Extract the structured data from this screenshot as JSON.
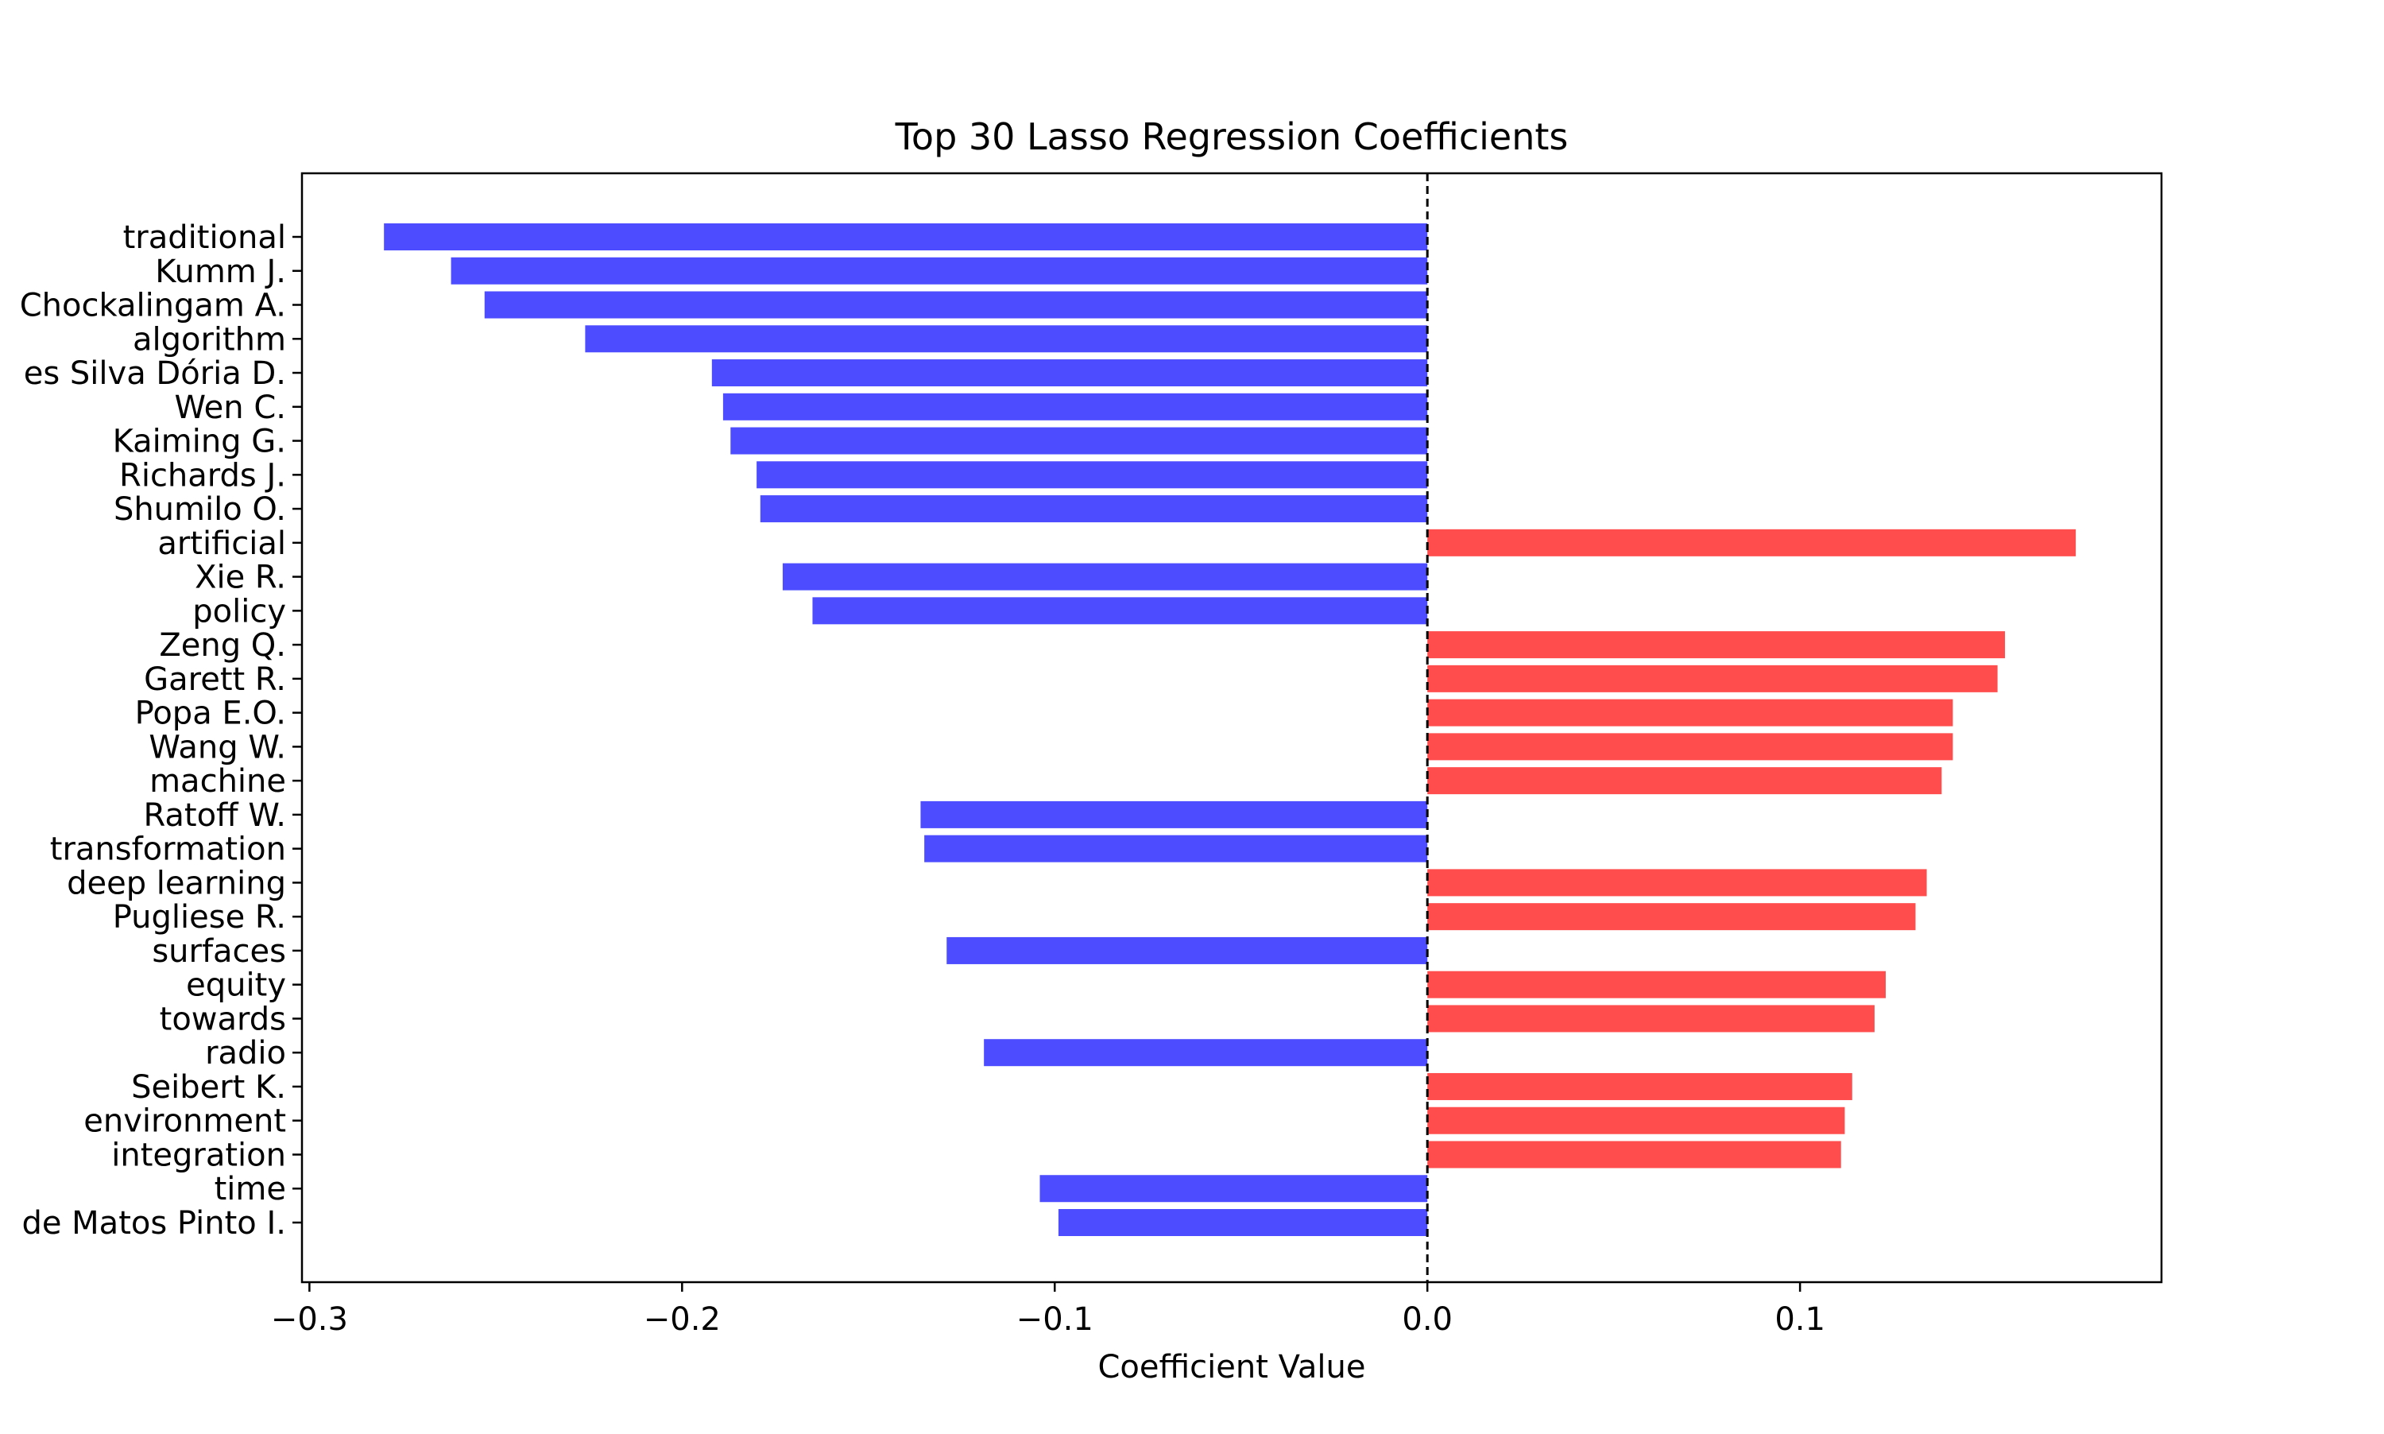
{
  "chart_data": {
    "type": "bar",
    "orientation": "horizontal",
    "title": "Top 30 Lasso Regression Coefficients",
    "xlabel": "Coefficient Value",
    "ylabel": "",
    "xlim": [
      -0.302,
      0.197
    ],
    "xticks": [
      -0.3,
      -0.2,
      -0.1,
      0.0,
      0.1
    ],
    "xtick_labels": [
      "−0.3",
      "−0.2",
      "−0.1",
      "0.0",
      "0.1"
    ],
    "reference_line": {
      "x": 0.0,
      "style": "dashed",
      "color": "#000000"
    },
    "colors": {
      "positive": "#ff4d4d",
      "negative": "#4d4dff"
    },
    "grid": false,
    "legend": "none",
    "categories": [
      "traditional",
      "Kumm J.",
      "Chockalingam A.",
      "algorithm",
      "es Silva Dória D.",
      "Wen C.",
      "Kaiming G.",
      "Richards J.",
      "Shumilo O.",
      "artificial",
      "Xie R.",
      "policy",
      "Zeng Q.",
      "Garett R.",
      "Popa E.O.",
      "Wang W.",
      "machine",
      "Ratoff W.",
      "transformation",
      "deep learning",
      "Pugliese R.",
      "surfaces",
      "equity",
      "towards",
      "radio",
      "Seibert K.",
      "environment",
      "integration",
      "time",
      "de Matos Pinto I."
    ],
    "values": [
      -0.28,
      -0.262,
      -0.253,
      -0.226,
      -0.192,
      -0.189,
      -0.187,
      -0.18,
      -0.179,
      0.174,
      -0.173,
      -0.165,
      0.155,
      0.153,
      0.141,
      0.141,
      0.138,
      -0.136,
      -0.135,
      0.134,
      0.131,
      -0.129,
      0.123,
      0.12,
      -0.119,
      0.114,
      0.112,
      0.111,
      -0.104,
      -0.099
    ]
  }
}
